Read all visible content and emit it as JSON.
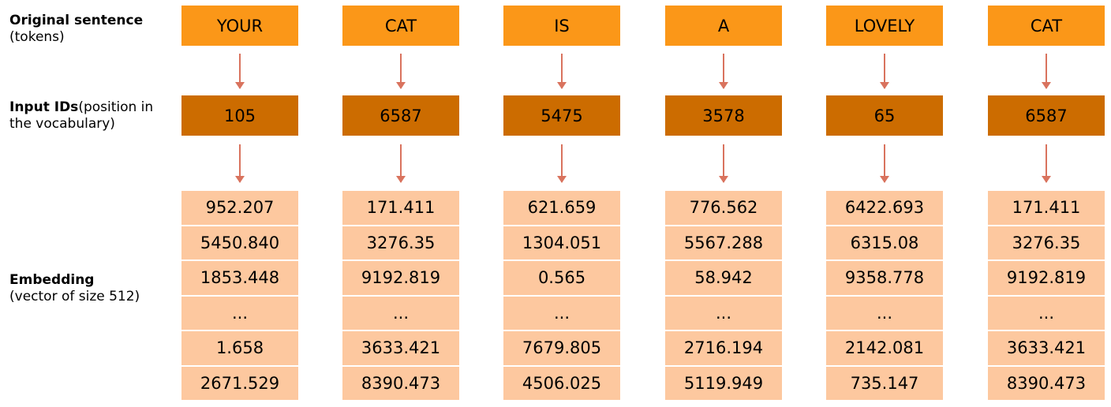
{
  "labels": {
    "tokens_bold": "Original sentence",
    "tokens_sub": "(tokens)",
    "ids_bold": "Input IDs",
    "ids_rest": "(position in",
    "ids_sub": "the vocabulary)",
    "emb_bold": "Embedding",
    "emb_sub": "(vector of size 512)"
  },
  "columns": [
    {
      "token": "YOUR",
      "id": "105",
      "embedding": [
        "952.207",
        "5450.840",
        "1853.448",
        "...",
        "1.658",
        "2671.529"
      ]
    },
    {
      "token": "CAT",
      "id": "6587",
      "embedding": [
        "171.411",
        "3276.35",
        "9192.819",
        "...",
        "3633.421",
        "8390.473"
      ]
    },
    {
      "token": "IS",
      "id": "5475",
      "embedding": [
        "621.659",
        "1304.051",
        "0.565",
        "...",
        "7679.805",
        "4506.025"
      ]
    },
    {
      "token": "A",
      "id": "3578",
      "embedding": [
        "776.562",
        "5567.288",
        "58.942",
        "...",
        "2716.194",
        "5119.949"
      ]
    },
    {
      "token": "LOVELY",
      "id": "65",
      "embedding": [
        "6422.693",
        "6315.08",
        "9358.778",
        "...",
        "2142.081",
        "735.147"
      ]
    },
    {
      "token": "CAT",
      "id": "6587",
      "embedding": [
        "171.411",
        "3276.35",
        "9192.819",
        "...",
        "3633.421",
        "8390.473"
      ]
    }
  ]
}
